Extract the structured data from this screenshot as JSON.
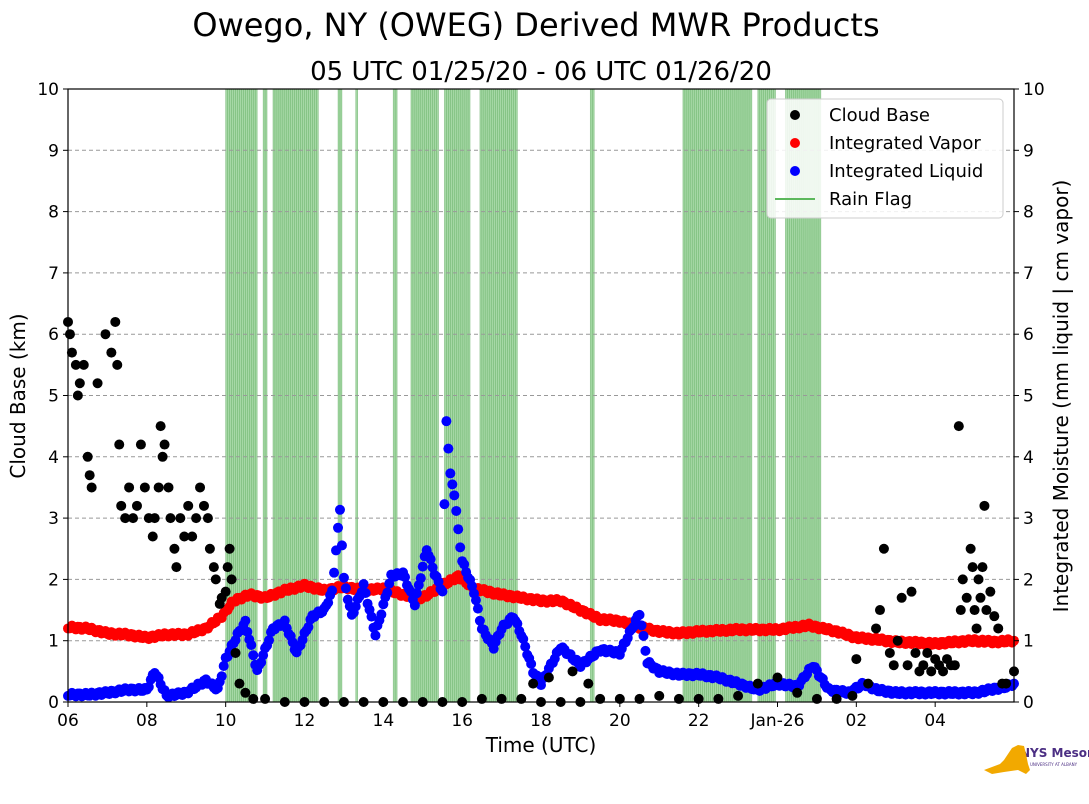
{
  "chart_data": {
    "type": "scatter",
    "title": "Owego, NY (OWEG) Derived MWR Products",
    "subtitle": "05 UTC 01/25/20 - 06 UTC 01/26/20",
    "xlabel": "Time (UTC)",
    "ylabel_left": "Cloud Base (km)",
    "ylabel_right": "Integrated Moisture (mm liquid | cm vapor)",
    "xlim_hours": [
      6,
      30
    ],
    "ylim": [
      0,
      10
    ],
    "grid": true,
    "legend_position": "top-right",
    "x_ticks": [
      {
        "hour": 6,
        "label": "06"
      },
      {
        "hour": 8,
        "label": "08"
      },
      {
        "hour": 10,
        "label": "10"
      },
      {
        "hour": 12,
        "label": "12"
      },
      {
        "hour": 14,
        "label": "14"
      },
      {
        "hour": 16,
        "label": "16"
      },
      {
        "hour": 18,
        "label": "18"
      },
      {
        "hour": 20,
        "label": "20"
      },
      {
        "hour": 22,
        "label": "22"
      },
      {
        "hour": 24,
        "label": "Jan-26"
      },
      {
        "hour": 26,
        "label": "02"
      },
      {
        "hour": 28,
        "label": "04"
      }
    ],
    "y_ticks": [
      0,
      1,
      2,
      3,
      4,
      5,
      6,
      7,
      8,
      9,
      10
    ],
    "legend": [
      {
        "label": "Cloud Base",
        "color": "#000000",
        "kind": "marker"
      },
      {
        "label": "Integrated Vapor",
        "color": "#ff0000",
        "kind": "marker"
      },
      {
        "label": "Integrated Liquid",
        "color": "#0000ff",
        "kind": "marker"
      },
      {
        "label": "Rain Flag",
        "color": "#5cb85c",
        "kind": "line"
      }
    ],
    "rain_flag_intervals": [
      [
        10.0,
        10.8
      ],
      [
        10.95,
        11.05
      ],
      [
        11.2,
        12.35
      ],
      [
        12.85,
        12.95
      ],
      [
        13.3,
        13.35
      ],
      [
        14.25,
        14.35
      ],
      [
        14.7,
        15.4
      ],
      [
        15.55,
        16.2
      ],
      [
        16.45,
        17.4
      ],
      [
        19.25,
        19.35
      ],
      [
        21.6,
        23.35
      ],
      [
        23.5,
        23.95
      ],
      [
        24.2,
        25.1
      ]
    ],
    "series": [
      {
        "name": "Integrated Vapor",
        "color": "#ff0000",
        "points": [
          [
            6.0,
            1.22
          ],
          [
            6.5,
            1.2
          ],
          [
            7.0,
            1.12
          ],
          [
            7.5,
            1.1
          ],
          [
            8.0,
            1.05
          ],
          [
            8.5,
            1.1
          ],
          [
            9.0,
            1.1
          ],
          [
            9.5,
            1.2
          ],
          [
            9.9,
            1.4
          ],
          [
            10.2,
            1.65
          ],
          [
            10.6,
            1.75
          ],
          [
            11.0,
            1.7
          ],
          [
            11.5,
            1.82
          ],
          [
            12.0,
            1.9
          ],
          [
            12.5,
            1.82
          ],
          [
            13.0,
            1.88
          ],
          [
            13.5,
            1.82
          ],
          [
            14.0,
            1.85
          ],
          [
            14.5,
            1.75
          ],
          [
            15.0,
            1.7
          ],
          [
            15.5,
            1.9
          ],
          [
            15.9,
            2.05
          ],
          [
            16.3,
            1.85
          ],
          [
            17.0,
            1.75
          ],
          [
            17.5,
            1.7
          ],
          [
            18.0,
            1.65
          ],
          [
            18.5,
            1.65
          ],
          [
            19.0,
            1.5
          ],
          [
            19.5,
            1.35
          ],
          [
            20.0,
            1.32
          ],
          [
            20.5,
            1.22
          ],
          [
            21.0,
            1.15
          ],
          [
            21.5,
            1.12
          ],
          [
            22.0,
            1.15
          ],
          [
            23.0,
            1.18
          ],
          [
            24.0,
            1.18
          ],
          [
            24.8,
            1.25
          ],
          [
            25.5,
            1.15
          ],
          [
            26.0,
            1.05
          ],
          [
            26.5,
            1.02
          ],
          [
            27.0,
            0.98
          ],
          [
            27.5,
            0.97
          ],
          [
            28.0,
            0.95
          ],
          [
            28.5,
            0.98
          ],
          [
            29.0,
            1.0
          ],
          [
            29.5,
            0.98
          ],
          [
            30.0,
            1.0
          ]
        ]
      },
      {
        "name": "Integrated Liquid",
        "color": "#0000ff",
        "points": [
          [
            6.0,
            0.12
          ],
          [
            6.5,
            0.12
          ],
          [
            7.0,
            0.15
          ],
          [
            7.5,
            0.2
          ],
          [
            8.0,
            0.2
          ],
          [
            8.2,
            0.5
          ],
          [
            8.5,
            0.1
          ],
          [
            9.0,
            0.15
          ],
          [
            9.5,
            0.35
          ],
          [
            9.8,
            0.2
          ],
          [
            10.0,
            0.7
          ],
          [
            10.3,
            1.1
          ],
          [
            10.5,
            1.3
          ],
          [
            10.8,
            0.5
          ],
          [
            11.2,
            1.2
          ],
          [
            11.5,
            1.3
          ],
          [
            11.8,
            0.8
          ],
          [
            12.2,
            1.4
          ],
          [
            12.5,
            1.5
          ],
          [
            12.7,
            1.8
          ],
          [
            12.9,
            3.15
          ],
          [
            13.0,
            2.0
          ],
          [
            13.2,
            1.4
          ],
          [
            13.5,
            1.9
          ],
          [
            13.8,
            1.1
          ],
          [
            14.2,
            2.05
          ],
          [
            14.5,
            2.1
          ],
          [
            14.8,
            1.6
          ],
          [
            15.1,
            2.5
          ],
          [
            15.3,
            2.1
          ],
          [
            15.5,
            1.8
          ],
          [
            15.6,
            4.6
          ],
          [
            15.7,
            3.7
          ],
          [
            15.8,
            3.4
          ],
          [
            15.9,
            2.8
          ],
          [
            16.0,
            2.3
          ],
          [
            16.3,
            1.8
          ],
          [
            16.5,
            1.2
          ],
          [
            16.8,
            0.9
          ],
          [
            17.0,
            1.2
          ],
          [
            17.3,
            1.4
          ],
          [
            17.5,
            1.1
          ],
          [
            17.8,
            0.5
          ],
          [
            18.0,
            0.3
          ],
          [
            18.5,
            0.9
          ],
          [
            19.0,
            0.6
          ],
          [
            19.5,
            0.85
          ],
          [
            20.0,
            0.8
          ],
          [
            20.5,
            1.45
          ],
          [
            20.7,
            0.65
          ],
          [
            21.0,
            0.5
          ],
          [
            21.5,
            0.45
          ],
          [
            22.0,
            0.45
          ],
          [
            22.5,
            0.4
          ],
          [
            23.0,
            0.3
          ],
          [
            23.5,
            0.2
          ],
          [
            24.0,
            0.3
          ],
          [
            24.5,
            0.25
          ],
          [
            24.9,
            0.6
          ],
          [
            25.3,
            0.2
          ],
          [
            25.8,
            0.15
          ],
          [
            26.2,
            0.3
          ],
          [
            26.5,
            0.2
          ],
          [
            27.0,
            0.15
          ],
          [
            28.0,
            0.15
          ],
          [
            29.0,
            0.15
          ],
          [
            29.8,
            0.25
          ],
          [
            30.0,
            0.3
          ]
        ]
      },
      {
        "name": "Cloud Base",
        "color": "#000000",
        "points": [
          [
            6.0,
            6.2
          ],
          [
            6.05,
            6.0
          ],
          [
            6.1,
            5.7
          ],
          [
            6.2,
            5.5
          ],
          [
            6.25,
            5.0
          ],
          [
            6.3,
            5.2
          ],
          [
            6.4,
            5.5
          ],
          [
            6.5,
            4.0
          ],
          [
            6.55,
            3.7
          ],
          [
            6.6,
            3.5
          ],
          [
            6.75,
            5.2
          ],
          [
            6.95,
            6.0
          ],
          [
            7.1,
            5.7
          ],
          [
            7.2,
            6.2
          ],
          [
            7.25,
            5.5
          ],
          [
            7.3,
            4.2
          ],
          [
            7.35,
            3.2
          ],
          [
            7.45,
            3.0
          ],
          [
            7.55,
            3.5
          ],
          [
            7.65,
            3.0
          ],
          [
            7.75,
            3.2
          ],
          [
            7.85,
            4.2
          ],
          [
            7.95,
            3.5
          ],
          [
            8.05,
            3.0
          ],
          [
            8.15,
            2.7
          ],
          [
            8.2,
            3.0
          ],
          [
            8.3,
            3.5
          ],
          [
            8.35,
            4.5
          ],
          [
            8.4,
            4.0
          ],
          [
            8.45,
            4.2
          ],
          [
            8.55,
            3.5
          ],
          [
            8.6,
            3.0
          ],
          [
            8.7,
            2.5
          ],
          [
            8.75,
            2.2
          ],
          [
            8.85,
            3.0
          ],
          [
            8.95,
            2.7
          ],
          [
            9.05,
            3.2
          ],
          [
            9.15,
            2.7
          ],
          [
            9.25,
            3.0
          ],
          [
            9.35,
            3.5
          ],
          [
            9.45,
            3.2
          ],
          [
            9.55,
            3.0
          ],
          [
            9.6,
            2.5
          ],
          [
            9.7,
            2.2
          ],
          [
            9.75,
            2.0
          ],
          [
            9.85,
            1.6
          ],
          [
            9.9,
            1.7
          ],
          [
            10.0,
            1.8
          ],
          [
            10.05,
            2.2
          ],
          [
            10.1,
            2.5
          ],
          [
            10.15,
            2.0
          ],
          [
            10.25,
            0.8
          ],
          [
            10.35,
            0.3
          ],
          [
            10.5,
            0.15
          ],
          [
            10.7,
            0.05
          ],
          [
            11.0,
            0.05
          ],
          [
            11.5,
            0.0
          ],
          [
            12.0,
            0.0
          ],
          [
            12.5,
            0.0
          ],
          [
            13.0,
            0.0
          ],
          [
            13.5,
            0.0
          ],
          [
            14.0,
            0.0
          ],
          [
            14.5,
            0.0
          ],
          [
            15.0,
            0.0
          ],
          [
            15.5,
            0.0
          ],
          [
            16.0,
            0.0
          ],
          [
            16.5,
            0.05
          ],
          [
            17.0,
            0.05
          ],
          [
            17.5,
            0.05
          ],
          [
            17.8,
            0.3
          ],
          [
            18.0,
            0.0
          ],
          [
            18.2,
            0.4
          ],
          [
            18.5,
            0.0
          ],
          [
            18.8,
            0.5
          ],
          [
            19.0,
            0.0
          ],
          [
            19.2,
            0.3
          ],
          [
            19.5,
            0.05
          ],
          [
            20.0,
            0.05
          ],
          [
            20.5,
            0.05
          ],
          [
            21.0,
            0.1
          ],
          [
            21.5,
            0.05
          ],
          [
            22.0,
            0.05
          ],
          [
            22.5,
            0.05
          ],
          [
            23.0,
            0.1
          ],
          [
            23.5,
            0.3
          ],
          [
            24.0,
            0.4
          ],
          [
            24.5,
            0.15
          ],
          [
            25.0,
            0.05
          ],
          [
            25.5,
            0.05
          ],
          [
            25.9,
            0.1
          ],
          [
            26.0,
            0.7
          ],
          [
            26.3,
            0.3
          ],
          [
            26.5,
            1.2
          ],
          [
            26.6,
            1.5
          ],
          [
            26.7,
            2.5
          ],
          [
            26.85,
            0.8
          ],
          [
            26.95,
            0.6
          ],
          [
            27.05,
            1.0
          ],
          [
            27.15,
            1.7
          ],
          [
            27.3,
            0.6
          ],
          [
            27.4,
            1.8
          ],
          [
            27.5,
            0.8
          ],
          [
            27.6,
            0.5
          ],
          [
            27.7,
            0.6
          ],
          [
            27.8,
            0.8
          ],
          [
            27.9,
            0.5
          ],
          [
            28.0,
            0.7
          ],
          [
            28.1,
            0.6
          ],
          [
            28.2,
            0.5
          ],
          [
            28.3,
            0.7
          ],
          [
            28.4,
            0.6
          ],
          [
            28.5,
            0.6
          ],
          [
            28.6,
            4.5
          ],
          [
            28.65,
            1.5
          ],
          [
            28.7,
            2.0
          ],
          [
            28.8,
            1.7
          ],
          [
            28.9,
            2.5
          ],
          [
            28.95,
            2.2
          ],
          [
            29.0,
            1.5
          ],
          [
            29.05,
            1.2
          ],
          [
            29.1,
            2.0
          ],
          [
            29.15,
            1.7
          ],
          [
            29.2,
            2.2
          ],
          [
            29.25,
            3.2
          ],
          [
            29.3,
            1.5
          ],
          [
            29.4,
            1.8
          ],
          [
            29.5,
            1.4
          ],
          [
            29.6,
            1.2
          ],
          [
            29.7,
            0.3
          ],
          [
            29.8,
            0.3
          ],
          [
            30.0,
            0.5
          ]
        ]
      }
    ]
  },
  "logo": {
    "text": "NYS Mesonet",
    "subtext": "UNIVERSITY AT ALBANY"
  }
}
